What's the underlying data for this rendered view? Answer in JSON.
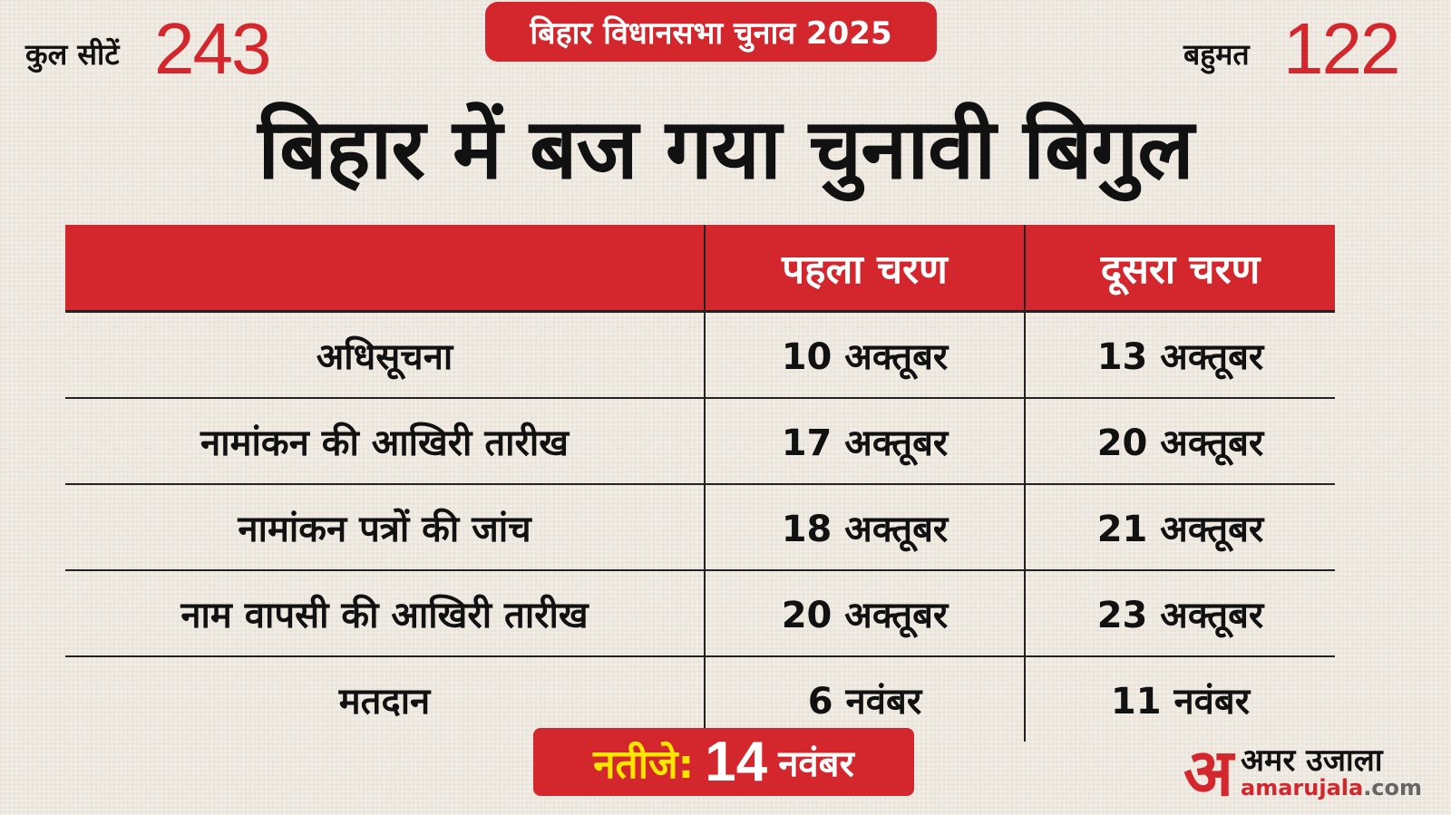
{
  "header": {
    "total_seats_label": "कुल सीटें",
    "total_seats": "243",
    "badge": "बिहार विधानसभा चुनाव 2025",
    "majority_label": "बहुमत",
    "majority": "122",
    "headline": "बिहार में बज गया चुनावी बिगुल"
  },
  "table": {
    "headers": [
      "",
      "पहला चरण",
      "दूसरा चरण"
    ],
    "rows": [
      {
        "label": "अधिसूचना",
        "phase1": "10 अक्तूबर",
        "phase2": "13 अक्तूबर"
      },
      {
        "label": "नामांकन की आखिरी तारीख",
        "phase1": "17 अक्तूबर",
        "phase2": "20 अक्तूबर"
      },
      {
        "label": "नामांकन पत्रों की जांच",
        "phase1": "18 अक्तूबर",
        "phase2": "21 अक्तूबर"
      },
      {
        "label": "नाम वापसी की आखिरी तारीख",
        "phase1": "20 अक्तूबर",
        "phase2": "23 अक्तूबर"
      },
      {
        "label": "मतदान",
        "phase1": "6 नवंबर",
        "phase2": "11 नवंबर"
      }
    ]
  },
  "result": {
    "label": "नतीजे:",
    "day": "14",
    "month": "नवंबर"
  },
  "logo": {
    "mark": "अ",
    "name_hi": "अमर उजाला",
    "site_main": "amarujala",
    "site_tld": ".com"
  },
  "colors": {
    "accent": "#d3262d",
    "highlight": "#ffe600",
    "background": "#eee8df"
  }
}
